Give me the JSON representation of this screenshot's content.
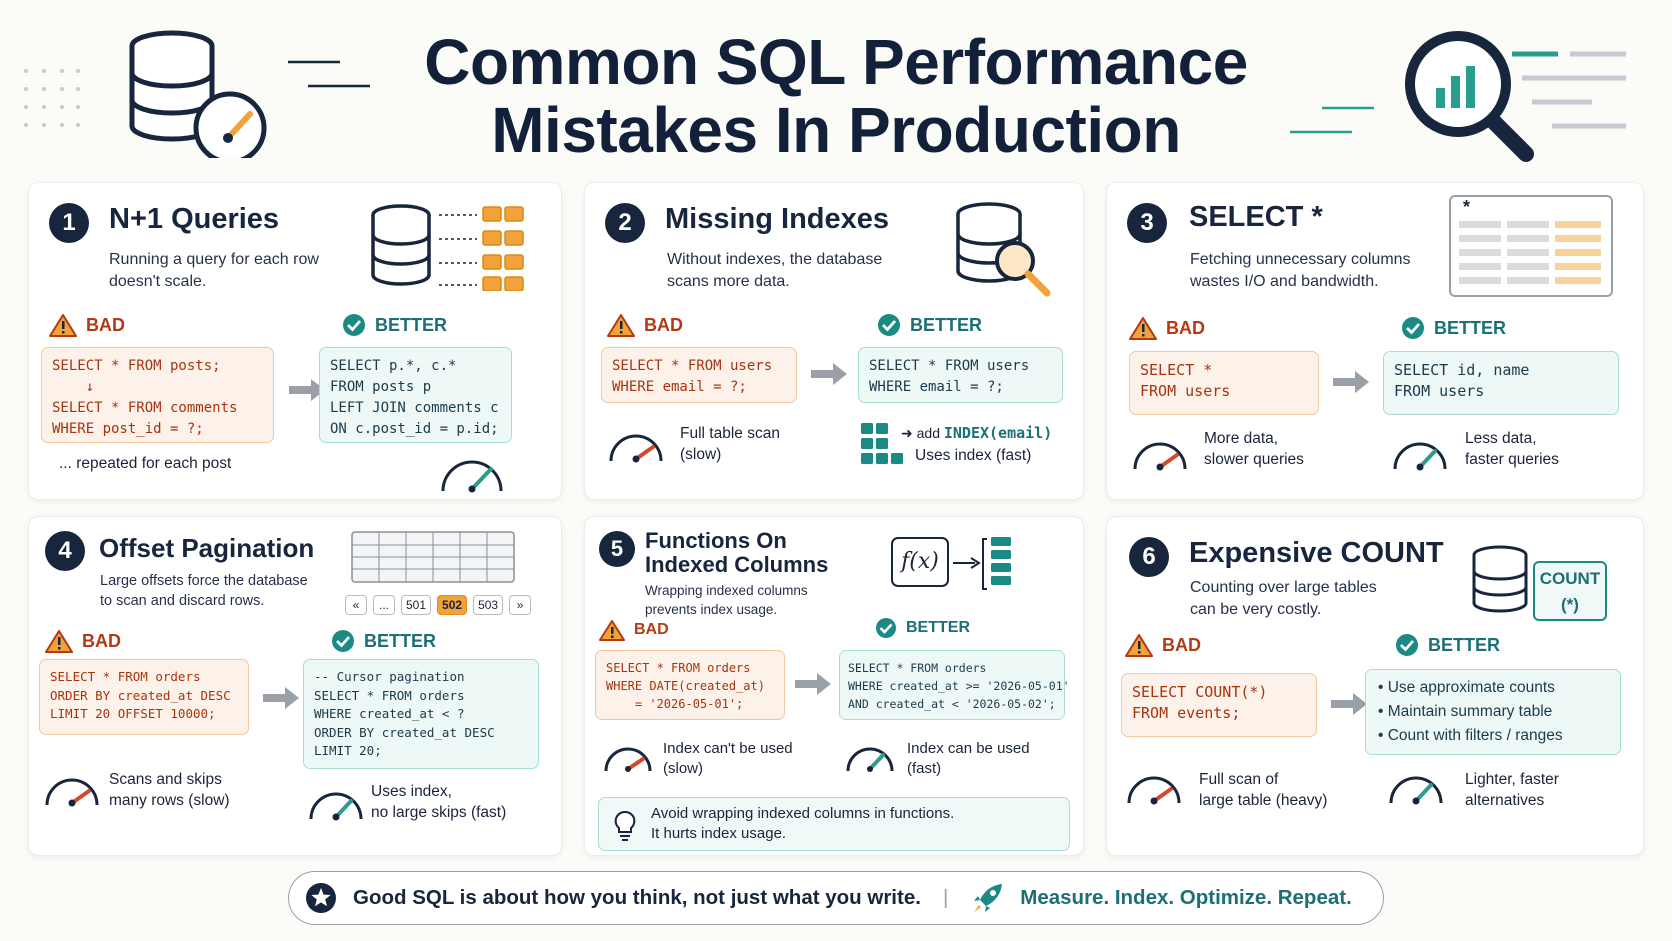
{
  "title": {
    "line1": "Common SQL Performance",
    "line2": "Mistakes In Production"
  },
  "colors": {
    "navy": "#17253d",
    "bad": "#b23a14",
    "good": "#1b6f75",
    "orange": "#f2a23a",
    "teal": "#2a9d8f"
  },
  "labels": {
    "bad": "BAD",
    "better": "BETTER"
  },
  "cards": [
    {
      "num": "1",
      "title": "N+1 Queries",
      "desc": "Running a query for each row\ndoesn't scale.",
      "bad_code": "SELECT * FROM posts;\n    ↓\nSELECT * FROM comments\nWHERE post_id = ?;",
      "bad_note": "... repeated for each post",
      "good_code": "SELECT p.*, c.*\nFROM posts p\nLEFT JOIN comments c\nON c.post_id = p.id;",
      "icons": [
        "database-icon",
        "rows-arrow-icon",
        "gauge-icon"
      ]
    },
    {
      "num": "2",
      "title": "Missing Indexes",
      "desc": "Without indexes, the database\nscans more data.",
      "bad_code": "SELECT * FROM users\nWHERE email = ?;",
      "bad_note": "Full table scan\n(slow)",
      "good_code": "SELECT * FROM users\nWHERE email = ?;",
      "good_note_add": "add",
      "good_note_index": "INDEX(email)",
      "good_note": "Uses index (fast)",
      "icons": [
        "database-search-icon",
        "gauge-icon",
        "index-grid-icon"
      ]
    },
    {
      "num": "3",
      "title": "SELECT *",
      "desc": "Fetching unnecessary columns\nwastes I/O and bandwidth.",
      "table_star": "*",
      "bad_code": "SELECT *\nFROM users",
      "bad_note": "More data,\nslower queries",
      "good_code": "SELECT id, name\nFROM users",
      "good_note": "Less data,\nfaster queries",
      "icons": [
        "table-columns-icon",
        "gauge-icon"
      ]
    },
    {
      "num": "4",
      "title": "Offset Pagination",
      "desc": "Large offsets force the database\nto scan and discard rows.",
      "pager": [
        "«",
        "...",
        "501",
        "502",
        "503",
        "»"
      ],
      "pager_active": "502",
      "bad_code": "SELECT * FROM orders\nORDER BY created_at DESC\nLIMIT 20 OFFSET 10000;",
      "bad_note": "Scans and skips\nmany rows (slow)",
      "good_code": "-- Cursor pagination\nSELECT * FROM orders\nWHERE created_at < ?\nORDER BY created_at DESC\nLIMIT 20;",
      "good_note": "Uses index,\nno large skips (fast)",
      "icons": [
        "grid-table-icon",
        "gauge-icon"
      ]
    },
    {
      "num": "5",
      "title": "Functions On\nIndexed Columns",
      "desc": "Wrapping indexed columns\nprevents index usage.",
      "fx": "f(x)",
      "bad_code": "SELECT * FROM orders\nWHERE DATE(created_at)\n    = '2026-05-01';",
      "bad_note": "Index can't be used\n(slow)",
      "good_code": "SELECT * FROM orders\nWHERE created_at >= '2026-05-01'\nAND created_at < '2026-05-02';",
      "good_note": "Index can be used\n(fast)",
      "tip": "Avoid wrapping indexed columns in functions.\nIt hurts index usage.",
      "icons": [
        "function-icon",
        "index-stack-icon",
        "lightbulb-icon",
        "gauge-icon"
      ]
    },
    {
      "num": "6",
      "title": "Expensive COUNT",
      "desc": "Counting over large tables\ncan be very costly.",
      "count_badge": "COUNT\n(*)",
      "bad_code": "SELECT COUNT(*)\nFROM events;",
      "bad_note": "Full scan of\nlarge table (heavy)",
      "good_list": [
        "Use approximate counts",
        "Maintain summary table",
        "Count with filters / ranges"
      ],
      "good_note": "Lighter, faster\nalternatives",
      "icons": [
        "database-icon",
        "gauge-icon"
      ]
    }
  ],
  "footer": {
    "left": "Good SQL is about how you think, not just what you write.",
    "divider": "|",
    "right": "Measure. Index. Optimize. Repeat."
  }
}
